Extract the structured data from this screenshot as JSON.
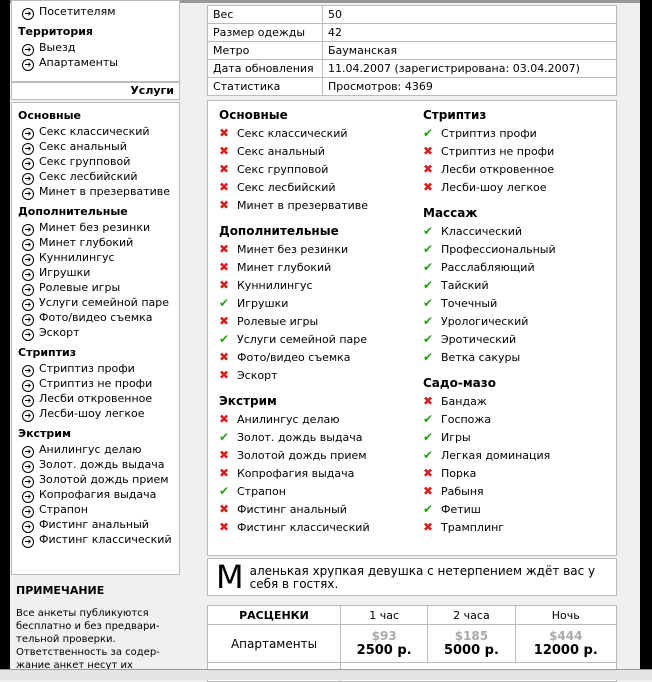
{
  "sidebar": {
    "top_item": "Посетителям",
    "territory": {
      "title": "Территория",
      "items": [
        "Выезд",
        "Апартаменты"
      ]
    },
    "services_header": "Услуги",
    "groups": [
      {
        "title": "Основные",
        "items": [
          "Секс классический",
          "Секс анальный",
          "Секс групповой",
          "Секс лесбийский",
          "Минет в презервативе"
        ]
      },
      {
        "title": "Дополнительные",
        "items": [
          "Минет без резинки",
          "Минет глубокий",
          "Куннилингус",
          "Игрушки",
          "Ролевые игры",
          "Услуги семейной паре",
          "Фото/видео съемка",
          "Эскорт"
        ]
      },
      {
        "title": "Стриптиз",
        "items": [
          "Стриптиз профи",
          "Стриптиз не профи",
          "Лесби откровенное",
          "Лесби-шоу легкое"
        ]
      },
      {
        "title": "Экстрим",
        "items": [
          "Анилингус делаю",
          "Золот. дождь выдача",
          "Золотой дождь прием",
          "Копрофагия выдача",
          "Страпон",
          "Фистинг анальный",
          "Фистинг классический"
        ]
      }
    ]
  },
  "note": {
    "title": "ПРИМЕЧАНИЕ",
    "text": "Все анкеты публикуются бесплатно и без предвари-тельной проверки. Ответственность за содер-жание анкет несут их"
  },
  "info": [
    {
      "label": "Вес",
      "value": "50"
    },
    {
      "label": "Размер одежды",
      "value": "42"
    },
    {
      "label": "Метро",
      "value": "Бауманская"
    },
    {
      "label": "Дата обновления",
      "value": "11.04.2007 (зарегистрирована: 03.04.2007)"
    },
    {
      "label": "Статистика",
      "value": "Просмотров: 4369"
    }
  ],
  "services": {
    "left": [
      {
        "title": "Основные",
        "items": [
          [
            "Секс классический",
            false
          ],
          [
            "Секс анальный",
            false
          ],
          [
            "Секс групповой",
            false
          ],
          [
            "Секс лесбийский",
            false
          ],
          [
            "Минет в презервативе",
            false
          ]
        ]
      },
      {
        "title": "Дополнительные",
        "items": [
          [
            "Минет без резинки",
            false
          ],
          [
            "Минет глубокий",
            false
          ],
          [
            "Куннилингус",
            false
          ],
          [
            "Игрушки",
            true
          ],
          [
            "Ролевые игры",
            false
          ],
          [
            "Услуги семейной паре",
            true
          ],
          [
            "Фото/видео съемка",
            false
          ],
          [
            "Эскорт",
            false
          ]
        ]
      },
      {
        "title": "Экстрим",
        "items": [
          [
            "Анилингус делаю",
            false
          ],
          [
            "Золот. дождь выдача",
            true
          ],
          [
            "Золотой дождь прием",
            false
          ],
          [
            "Копрофагия выдача",
            false
          ],
          [
            "Страпон",
            true
          ],
          [
            "Фистинг анальный",
            false
          ],
          [
            "Фистинг классический",
            false
          ]
        ]
      }
    ],
    "right": [
      {
        "title": "Стриптиз",
        "items": [
          [
            "Стриптиз профи",
            true
          ],
          [
            "Стриптиз не профи",
            false
          ],
          [
            "Лесби откровенное",
            false
          ],
          [
            "Лесби-шоу легкое",
            false
          ]
        ]
      },
      {
        "title": "Массаж",
        "items": [
          [
            "Классический",
            true
          ],
          [
            "Профессиональный",
            true
          ],
          [
            "Расслабляющий",
            true
          ],
          [
            "Тайский",
            true
          ],
          [
            "Точечный",
            true
          ],
          [
            "Урологический",
            true
          ],
          [
            "Эротический",
            true
          ],
          [
            "Ветка сакуры",
            true
          ]
        ]
      },
      {
        "title": "Садо-мазо",
        "items": [
          [
            "Бандаж",
            false
          ],
          [
            "Госпожа",
            true
          ],
          [
            "Игры",
            true
          ],
          [
            "Легкая доминация",
            true
          ],
          [
            "Порка",
            false
          ],
          [
            "Рабыня",
            false
          ],
          [
            "Фетиш",
            true
          ],
          [
            "Трамплинг",
            false
          ]
        ]
      }
    ],
    "colors": {
      "yes": "#2a9d1e",
      "no": "#d82020"
    }
  },
  "description": {
    "initial": "М",
    "text": "аленькая хрупкая девушка с нетерпением ждёт вас у себя в гостях."
  },
  "prices": {
    "header": [
      "РАСЦЕНКИ",
      "1 час",
      "2 часа",
      "Ночь"
    ],
    "rows": [
      {
        "label": "Апартаменты",
        "usd": [
          "$93",
          "$185",
          "$444"
        ],
        "rub": [
          "2500 р.",
          "5000 р.",
          "12000 р."
        ]
      }
    ]
  }
}
